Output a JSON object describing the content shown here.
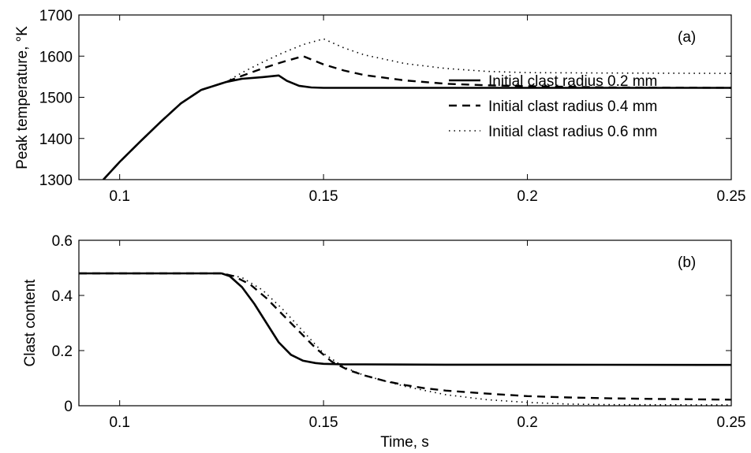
{
  "chart_data": [
    {
      "type": "line",
      "panel_label": "(a)",
      "xlabel": "",
      "ylabel": "Peak temperature, °K",
      "xlim": [
        0.09,
        0.25
      ],
      "ylim": [
        1300,
        1700
      ],
      "xticks": [
        0.1,
        0.15,
        0.2,
        0.25
      ],
      "xtick_labels": [
        "0.1",
        "0.15",
        "0.2",
        "0.25"
      ],
      "yticks": [
        1300,
        1400,
        1500,
        1600,
        1700
      ],
      "ytick_labels": [
        "1300",
        "1400",
        "1500",
        "1600",
        "1700"
      ],
      "grid": false,
      "legend_position": "right",
      "series": [
        {
          "name": "Initial clast radius 0.2 mm",
          "style": "solid",
          "x": [
            0.096,
            0.1,
            0.105,
            0.11,
            0.115,
            0.12,
            0.126,
            0.13,
            0.135,
            0.139,
            0.141,
            0.144,
            0.147,
            0.15,
            0.155,
            0.16,
            0.2,
            0.25
          ],
          "y": [
            1300,
            1343,
            1392,
            1440,
            1485,
            1518,
            1537,
            1545,
            1549,
            1553,
            1540,
            1528,
            1524,
            1523,
            1523,
            1523,
            1523,
            1523
          ]
        },
        {
          "name": "Initial clast radius 0.4 mm",
          "style": "dashed",
          "x": [
            0.096,
            0.1,
            0.105,
            0.11,
            0.115,
            0.12,
            0.126,
            0.13,
            0.135,
            0.14,
            0.145,
            0.15,
            0.155,
            0.16,
            0.17,
            0.18,
            0.19,
            0.2,
            0.22,
            0.25
          ],
          "y": [
            1300,
            1343,
            1392,
            1440,
            1485,
            1518,
            1537,
            1552,
            1570,
            1586,
            1600,
            1580,
            1565,
            1554,
            1541,
            1533,
            1529,
            1527,
            1524,
            1523
          ]
        },
        {
          "name": "Initial clast radius 0.6 mm",
          "style": "dotted",
          "x": [
            0.096,
            0.1,
            0.105,
            0.11,
            0.115,
            0.12,
            0.126,
            0.13,
            0.135,
            0.14,
            0.145,
            0.15,
            0.155,
            0.16,
            0.17,
            0.18,
            0.19,
            0.2,
            0.22,
            0.25
          ],
          "y": [
            1300,
            1343,
            1392,
            1440,
            1485,
            1518,
            1537,
            1560,
            1585,
            1608,
            1628,
            1642,
            1620,
            1603,
            1582,
            1570,
            1563,
            1560,
            1559,
            1558
          ]
        }
      ]
    },
    {
      "type": "line",
      "panel_label": "(b)",
      "xlabel": "Time, s",
      "ylabel": "Clast content",
      "xlim": [
        0.09,
        0.25
      ],
      "ylim": [
        0,
        0.6
      ],
      "xticks": [
        0.1,
        0.15,
        0.2,
        0.25
      ],
      "xtick_labels": [
        "0.1",
        "0.15",
        "0.2",
        "0.25"
      ],
      "yticks": [
        0,
        0.2,
        0.4,
        0.6
      ],
      "ytick_labels": [
        "0",
        "0.2",
        "0.4",
        "0.6"
      ],
      "grid": false,
      "series": [
        {
          "name": "Initial clast radius 0.2 mm",
          "style": "solid",
          "x": [
            0.09,
            0.1,
            0.11,
            0.12,
            0.125,
            0.127,
            0.13,
            0.133,
            0.136,
            0.139,
            0.142,
            0.145,
            0.148,
            0.15,
            0.155,
            0.16,
            0.18,
            0.2,
            0.25
          ],
          "y": [
            0.48,
            0.48,
            0.48,
            0.48,
            0.48,
            0.47,
            0.43,
            0.37,
            0.3,
            0.23,
            0.185,
            0.163,
            0.155,
            0.152,
            0.15,
            0.15,
            0.149,
            0.149,
            0.148
          ]
        },
        {
          "name": "Initial clast radius 0.4 mm",
          "style": "dashed",
          "x": [
            0.09,
            0.1,
            0.11,
            0.12,
            0.125,
            0.128,
            0.132,
            0.136,
            0.14,
            0.144,
            0.148,
            0.152,
            0.156,
            0.16,
            0.165,
            0.17,
            0.175,
            0.18,
            0.19,
            0.2,
            0.21,
            0.22,
            0.23,
            0.25
          ],
          "y": [
            0.48,
            0.48,
            0.48,
            0.48,
            0.48,
            0.47,
            0.44,
            0.39,
            0.33,
            0.27,
            0.21,
            0.16,
            0.13,
            0.11,
            0.09,
            0.075,
            0.063,
            0.055,
            0.044,
            0.035,
            0.03,
            0.027,
            0.025,
            0.022
          ]
        },
        {
          "name": "Initial clast radius 0.6 mm",
          "style": "dotted",
          "x": [
            0.09,
            0.1,
            0.11,
            0.12,
            0.125,
            0.13,
            0.135,
            0.14,
            0.145,
            0.15,
            0.155,
            0.16,
            0.165,
            0.17,
            0.175,
            0.18,
            0.19,
            0.2,
            0.21,
            0.22,
            0.25
          ],
          "y": [
            0.48,
            0.48,
            0.48,
            0.48,
            0.48,
            0.465,
            0.42,
            0.35,
            0.27,
            0.19,
            0.14,
            0.11,
            0.09,
            0.07,
            0.055,
            0.04,
            0.022,
            0.012,
            0.006,
            0.004,
            0.003
          ]
        }
      ]
    }
  ]
}
